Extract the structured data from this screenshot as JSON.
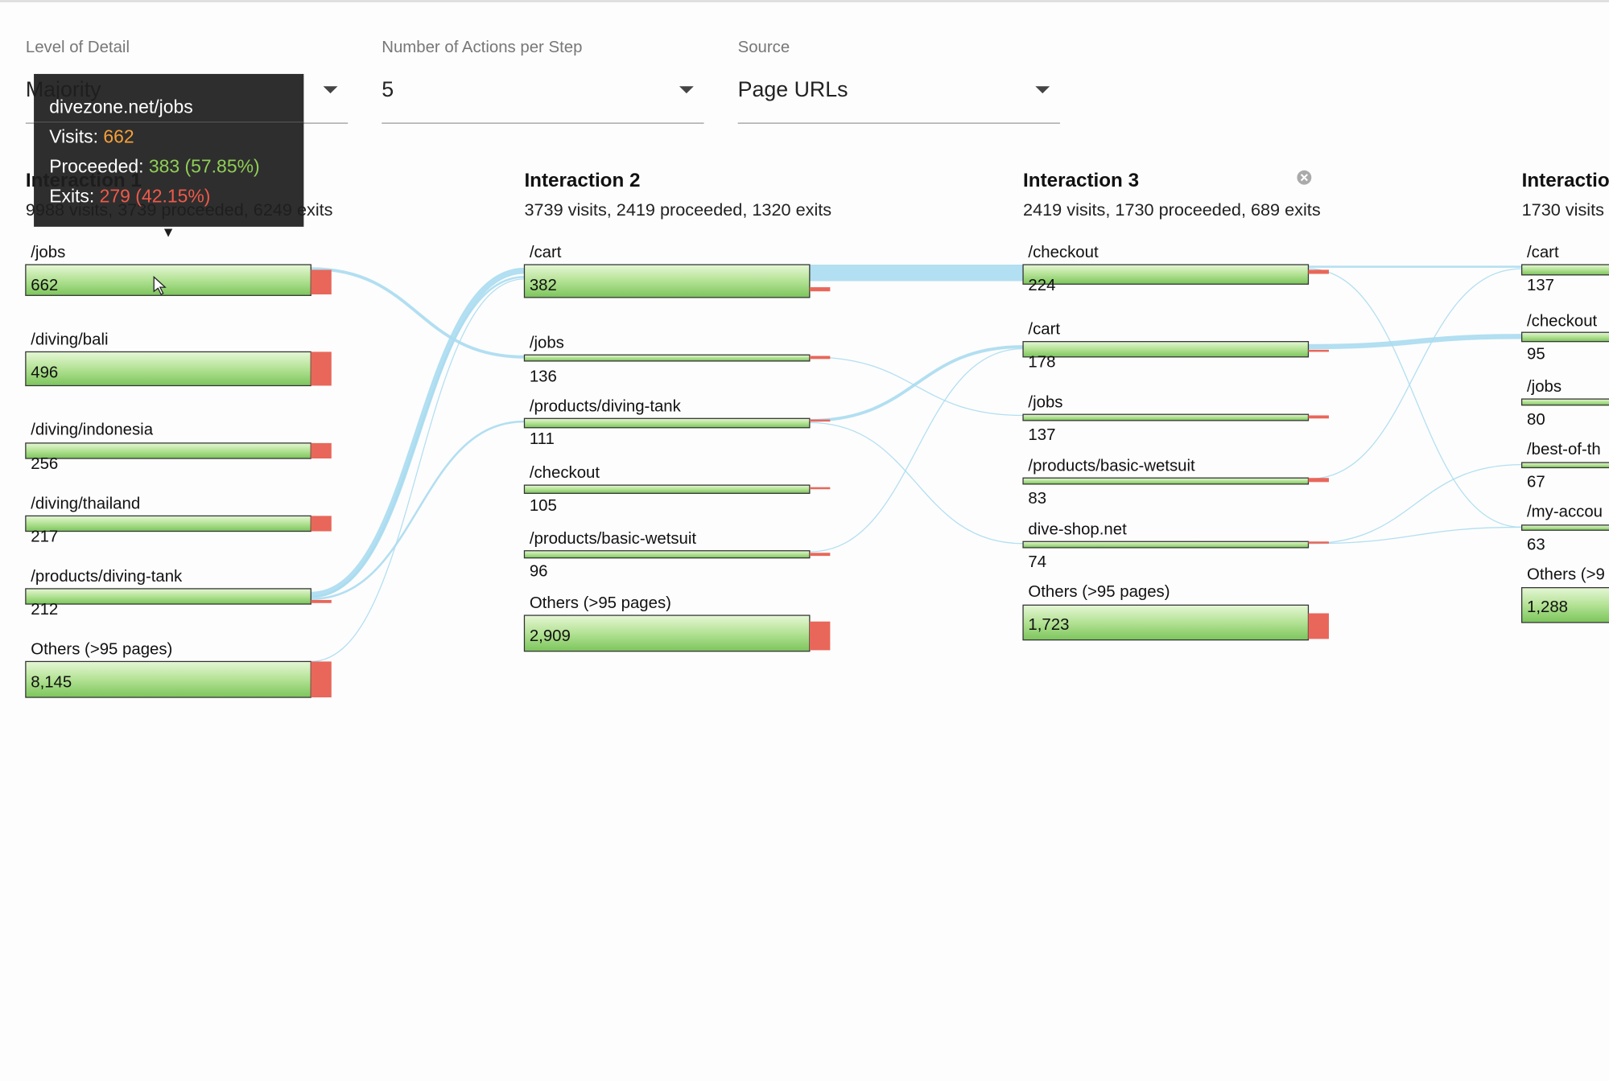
{
  "filters": [
    {
      "label": "Level of Detail",
      "value": "Majority"
    },
    {
      "label": "Number of Actions per Step",
      "value": "5"
    },
    {
      "label": "Source",
      "value": "Page URLs"
    }
  ],
  "columns": [
    {
      "title": "Interaction 1",
      "summary": "9988 visits, 3739 proceeded, 6249 exits",
      "nodes": [
        {
          "label": "/jobs",
          "count": "662"
        },
        {
          "label": "/diving/bali",
          "count": "496"
        },
        {
          "label": "/diving/indonesia",
          "count": "256"
        },
        {
          "label": "/diving/thailand",
          "count": "217"
        },
        {
          "label": "/products/diving-tank",
          "count": "212"
        },
        {
          "label": "Others (>95 pages)",
          "count": "8,145"
        }
      ]
    },
    {
      "title": "Interaction 2",
      "summary": "3739 visits, 2419 proceeded, 1320 exits",
      "nodes": [
        {
          "label": "/cart",
          "count": "382"
        },
        {
          "label": "/jobs",
          "count": "136"
        },
        {
          "label": "/products/diving-tank",
          "count": "111"
        },
        {
          "label": "/checkout",
          "count": "105"
        },
        {
          "label": "/products/basic-wetsuit",
          "count": "96"
        },
        {
          "label": "Others (>95 pages)",
          "count": "2,909"
        }
      ]
    },
    {
      "title": "Interaction 3",
      "summary": "2419 visits, 1730 proceeded, 689 exits",
      "nodes": [
        {
          "label": "/checkout",
          "count": "224"
        },
        {
          "label": "/cart",
          "count": "178"
        },
        {
          "label": "/jobs",
          "count": "137"
        },
        {
          "label": "/products/basic-wetsuit",
          "count": "83"
        },
        {
          "label": "dive-shop.net",
          "count": "74"
        },
        {
          "label": "Others (>95 pages)",
          "count": "1,723"
        }
      ]
    },
    {
      "title": "Interactio",
      "summary": "1730 visits",
      "nodes": [
        {
          "label": "/cart",
          "count": "137"
        },
        {
          "label": "/checkout",
          "count": "95"
        },
        {
          "label": "/jobs",
          "count": "80"
        },
        {
          "label": "/best-of-th",
          "count": "67"
        },
        {
          "label": "/my-accou",
          "count": "63"
        },
        {
          "label": "Others (>9",
          "count": "1,288"
        }
      ]
    }
  ],
  "tooltip": {
    "title": "divezone.net/jobs",
    "visits_label": "Visits:",
    "visits": "662",
    "proceeded_label": "Proceeded:",
    "proceeded": "383 (57.85%)",
    "exits_label": "Exits:",
    "exits": "279 (42.15%)"
  }
}
